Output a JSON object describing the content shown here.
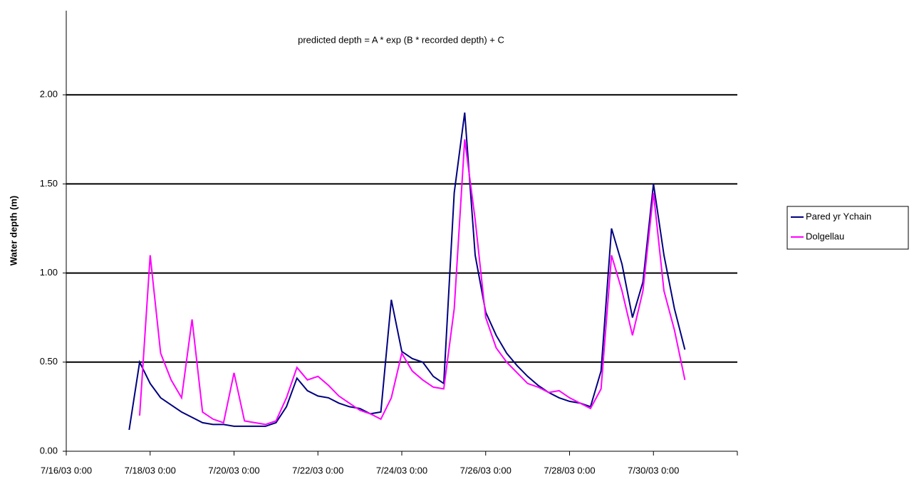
{
  "chart_data": {
    "type": "line",
    "annotation": "predicted depth = A * exp (B * recorded depth) + C",
    "y_label": "Water depth (m)",
    "x": [
      "7/17/03 12:00",
      "7/17/03 18:00",
      "7/18/03 0:00",
      "7/18/03 6:00",
      "7/18/03 12:00",
      "7/18/03 18:00",
      "7/19/03 0:00",
      "7/19/03 6:00",
      "7/19/03 12:00",
      "7/19/03 18:00",
      "7/20/03 0:00",
      "7/20/03 6:00",
      "7/20/03 12:00",
      "7/20/03 18:00",
      "7/21/03 0:00",
      "7/21/03 6:00",
      "7/21/03 12:00",
      "7/21/03 18:00",
      "7/22/03 0:00",
      "7/22/03 6:00",
      "7/22/03 12:00",
      "7/22/03 18:00",
      "7/23/03 0:00",
      "7/23/03 6:00",
      "7/23/03 12:00",
      "7/23/03 18:00",
      "7/24/03 0:00",
      "7/24/03 6:00",
      "7/24/03 12:00",
      "7/24/03 18:00",
      "7/25/03 0:00",
      "7/25/03 6:00",
      "7/25/03 12:00",
      "7/25/03 18:00",
      "7/26/03 0:00",
      "7/26/03 6:00",
      "7/26/03 12:00",
      "7/26/03 18:00",
      "7/27/03 0:00",
      "7/27/03 6:00",
      "7/27/03 12:00",
      "7/27/03 18:00",
      "7/28/03 0:00",
      "7/28/03 6:00",
      "7/28/03 12:00",
      "7/28/03 18:00",
      "7/29/03 0:00",
      "7/29/03 6:00",
      "7/29/03 12:00",
      "7/29/03 18:00",
      "7/30/03 0:00",
      "7/30/03 6:00",
      "7/30/03 12:00",
      "7/30/03 18:00"
    ],
    "series": [
      {
        "name": "Pared yr Ychain",
        "color": "#000080",
        "values": [
          0.12,
          0.5,
          0.38,
          0.3,
          0.26,
          0.22,
          0.19,
          0.16,
          0.15,
          0.15,
          0.14,
          0.14,
          0.14,
          0.14,
          0.16,
          0.25,
          0.41,
          0.34,
          0.31,
          0.3,
          0.27,
          0.25,
          0.24,
          0.21,
          0.22,
          0.85,
          0.56,
          0.52,
          0.5,
          0.42,
          0.38,
          1.45,
          1.9,
          1.1,
          0.78,
          0.65,
          0.55,
          0.48,
          0.42,
          0.37,
          0.33,
          0.3,
          0.28,
          0.27,
          0.25,
          0.45,
          1.25,
          1.05,
          0.75,
          0.95,
          1.5,
          1.1,
          0.8,
          0.57
        ]
      },
      {
        "name": "Dolgellau",
        "color": "#ff00ff",
        "values": [
          null,
          0.2,
          1.1,
          0.55,
          0.4,
          0.3,
          0.74,
          0.22,
          0.18,
          0.16,
          0.44,
          0.17,
          0.16,
          0.15,
          0.17,
          0.3,
          0.47,
          0.4,
          0.42,
          0.37,
          0.31,
          0.27,
          0.23,
          0.21,
          0.18,
          0.3,
          0.55,
          0.45,
          0.4,
          0.36,
          0.35,
          0.8,
          1.75,
          1.3,
          0.75,
          0.58,
          0.5,
          0.44,
          0.38,
          0.36,
          0.33,
          0.34,
          0.3,
          0.27,
          0.24,
          0.35,
          1.1,
          0.9,
          0.65,
          0.9,
          1.45,
          0.9,
          0.68,
          0.4
        ]
      }
    ],
    "xlim": [
      "7/16/03 0:00",
      "8/1/03 0:00"
    ],
    "xticks": [
      "7/16/03 0:00",
      "7/18/03 0:00",
      "7/20/03 0:00",
      "7/22/03 0:00",
      "7/24/03 0:00",
      "7/26/03 0:00",
      "7/28/03 0:00",
      "7/30/03 0:00"
    ],
    "ylim": [
      0,
      2.5
    ],
    "yticks": [
      {
        "value": 0,
        "label": "0.00"
      },
      {
        "value": 0.5,
        "label": "0.50"
      },
      {
        "value": 1,
        "label": "1.00"
      },
      {
        "value": 1.5,
        "label": "1.50"
      },
      {
        "value": 2,
        "label": "2.00"
      }
    ],
    "grid": true,
    "legend": "right"
  }
}
